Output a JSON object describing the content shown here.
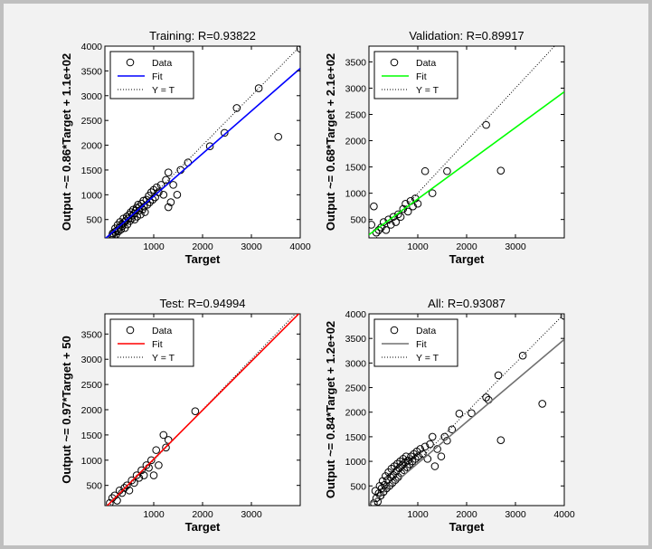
{
  "chart_data": [
    {
      "type": "scatter",
      "title": "Training: R=0.93822",
      "xlabel": "Target",
      "ylabel": "Output ~= 0.86*Target + 1.1e+02",
      "xlim": [
        0,
        4000
      ],
      "ylim": [
        130,
        4000
      ],
      "xticks": [
        1000,
        2000,
        3000,
        4000
      ],
      "yticks": [
        500,
        1000,
        1500,
        2000,
        2500,
        3000,
        3500,
        4000
      ],
      "grid": false,
      "legend_placement": "top-left",
      "fit": {
        "slope": 0.86,
        "intercept": 110,
        "color": "#0000ff"
      },
      "series": [
        {
          "name": "Data",
          "points": [
            [
              150,
              180
            ],
            [
              160,
              220
            ],
            [
              180,
              160
            ],
            [
              200,
              250
            ],
            [
              210,
              320
            ],
            [
              230,
              200
            ],
            [
              250,
              280
            ],
            [
              260,
              390
            ],
            [
              280,
              260
            ],
            [
              300,
              340
            ],
            [
              310,
              450
            ],
            [
              330,
              300
            ],
            [
              350,
              410
            ],
            [
              360,
              370
            ],
            [
              380,
              520
            ],
            [
              400,
              450
            ],
            [
              410,
              330
            ],
            [
              430,
              480
            ],
            [
              450,
              560
            ],
            [
              460,
              400
            ],
            [
              480,
              520
            ],
            [
              500,
              600
            ],
            [
              510,
              470
            ],
            [
              530,
              650
            ],
            [
              550,
              520
            ],
            [
              560,
              580
            ],
            [
              580,
              700
            ],
            [
              600,
              620
            ],
            [
              610,
              500
            ],
            [
              630,
              680
            ],
            [
              650,
              740
            ],
            [
              660,
              560
            ],
            [
              680,
              800
            ],
            [
              700,
              680
            ],
            [
              710,
              760
            ],
            [
              730,
              600
            ],
            [
              750,
              820
            ],
            [
              770,
              700
            ],
            [
              790,
              880
            ],
            [
              800,
              760
            ],
            [
              820,
              650
            ],
            [
              850,
              900
            ],
            [
              870,
              800
            ],
            [
              900,
              980
            ],
            [
              920,
              850
            ],
            [
              950,
              1050
            ],
            [
              980,
              900
            ],
            [
              1000,
              1100
            ],
            [
              1030,
              950
            ],
            [
              1060,
              1150
            ],
            [
              1100,
              1050
            ],
            [
              1150,
              1200
            ],
            [
              1200,
              1000
            ],
            [
              1250,
              1300
            ],
            [
              1300,
              1450
            ],
            [
              1350,
              850
            ],
            [
              1400,
              1200
            ],
            [
              1480,
              1000
            ],
            [
              1550,
              1500
            ],
            [
              1700,
              1650
            ],
            [
              1300,
              750
            ],
            [
              2150,
              1980
            ],
            [
              2450,
              2250
            ],
            [
              2700,
              2750
            ],
            [
              3150,
              3150
            ],
            [
              3550,
              2170
            ],
            [
              4000,
              3950
            ]
          ]
        },
        {
          "name": "Fit"
        },
        {
          "name": "Y = T"
        }
      ]
    },
    {
      "type": "scatter",
      "title": "Validation: R=0.89917",
      "xlabel": "Target",
      "ylabel": "Output ~= 0.68*Target + 2.1e+02",
      "xlim": [
        0,
        4000
      ],
      "ylim": [
        150,
        3800
      ],
      "xticks": [
        1000,
        2000,
        3000
      ],
      "yticks": [
        500,
        1000,
        1500,
        2000,
        2500,
        3000,
        3500
      ],
      "grid": false,
      "legend_placement": "top-left",
      "fit": {
        "slope": 0.68,
        "intercept": 210,
        "color": "#00ff00"
      },
      "series": [
        {
          "name": "Data",
          "points": [
            [
              50,
              400
            ],
            [
              100,
              750
            ],
            [
              150,
              250
            ],
            [
              200,
              300
            ],
            [
              250,
              350
            ],
            [
              300,
              450
            ],
            [
              350,
              300
            ],
            [
              400,
              500
            ],
            [
              450,
              400
            ],
            [
              500,
              550
            ],
            [
              550,
              450
            ],
            [
              600,
              600
            ],
            [
              650,
              550
            ],
            [
              700,
              700
            ],
            [
              750,
              800
            ],
            [
              800,
              650
            ],
            [
              850,
              850
            ],
            [
              900,
              750
            ],
            [
              950,
              900
            ],
            [
              1000,
              800
            ],
            [
              1150,
              1420
            ],
            [
              1300,
              1000
            ],
            [
              1600,
              1420
            ],
            [
              2400,
              2300
            ],
            [
              2700,
              1430
            ]
          ]
        },
        {
          "name": "Fit"
        },
        {
          "name": "Y = T"
        }
      ]
    },
    {
      "type": "scatter",
      "title": "Test: R=0.94994",
      "xlabel": "Target",
      "ylabel": "Output ~= 0.97*Target + 50",
      "xlim": [
        0,
        4000
      ],
      "ylim": [
        100,
        3900
      ],
      "xticks": [
        1000,
        2000,
        3000
      ],
      "yticks": [
        500,
        1000,
        1500,
        2000,
        2500,
        3000,
        3500
      ],
      "grid": false,
      "legend_placement": "top-left",
      "fit": {
        "slope": 0.97,
        "intercept": 50,
        "color": "#ff0000"
      },
      "series": [
        {
          "name": "Data",
          "points": [
            [
              100,
              150
            ],
            [
              150,
              250
            ],
            [
              200,
              300
            ],
            [
              250,
              200
            ],
            [
              300,
              400
            ],
            [
              350,
              350
            ],
            [
              400,
              450
            ],
            [
              450,
              500
            ],
            [
              500,
              400
            ],
            [
              550,
              600
            ],
            [
              600,
              550
            ],
            [
              650,
              700
            ],
            [
              700,
              650
            ],
            [
              750,
              800
            ],
            [
              800,
              700
            ],
            [
              850,
              900
            ],
            [
              900,
              850
            ],
            [
              950,
              1000
            ],
            [
              1000,
              700
            ],
            [
              1050,
              1200
            ],
            [
              1100,
              900
            ],
            [
              1200,
              1500
            ],
            [
              1300,
              1400
            ],
            [
              1250,
              1250
            ],
            [
              1850,
              1970
            ]
          ]
        },
        {
          "name": "Fit"
        },
        {
          "name": "Y = T"
        }
      ]
    },
    {
      "type": "scatter",
      "title": "All: R=0.93087",
      "xlabel": "Target",
      "ylabel": "Output ~= 0.84*Target + 1.2e+02",
      "xlim": [
        0,
        4000
      ],
      "ylim": [
        100,
        4000
      ],
      "xticks": [
        1000,
        2000,
        3000,
        4000
      ],
      "yticks": [
        500,
        1000,
        1500,
        2000,
        2500,
        3000,
        3500,
        4000
      ],
      "grid": false,
      "legend_placement": "top-left",
      "fit": {
        "slope": 0.84,
        "intercept": 120,
        "color": "#707070"
      },
      "series": [
        {
          "name": "Data",
          "points": [
            [
              100,
              150
            ],
            [
              130,
              400
            ],
            [
              150,
              250
            ],
            [
              180,
              180
            ],
            [
              200,
              350
            ],
            [
              220,
              500
            ],
            [
              240,
              300
            ],
            [
              260,
              450
            ],
            [
              280,
              600
            ],
            [
              300,
              380
            ],
            [
              320,
              520
            ],
            [
              340,
              700
            ],
            [
              360,
              450
            ],
            [
              380,
              620
            ],
            [
              400,
              780
            ],
            [
              420,
              500
            ],
            [
              440,
              680
            ],
            [
              460,
              850
            ],
            [
              480,
              560
            ],
            [
              500,
              720
            ],
            [
              520,
              900
            ],
            [
              540,
              620
            ],
            [
              560,
              800
            ],
            [
              580,
              950
            ],
            [
              600,
              680
            ],
            [
              620,
              860
            ],
            [
              640,
              1000
            ],
            [
              660,
              760
            ],
            [
              680,
              920
            ],
            [
              700,
              1050
            ],
            [
              720,
              820
            ],
            [
              740,
              980
            ],
            [
              760,
              1100
            ],
            [
              780,
              880
            ],
            [
              800,
              1020
            ],
            [
              830,
              940
            ],
            [
              860,
              1100
            ],
            [
              890,
              1000
            ],
            [
              920,
              1150
            ],
            [
              950,
              1050
            ],
            [
              980,
              1200
            ],
            [
              1010,
              1100
            ],
            [
              1050,
              1250
            ],
            [
              1100,
              1150
            ],
            [
              1150,
              1300
            ],
            [
              1200,
              1050
            ],
            [
              1250,
              1350
            ],
            [
              1300,
              1500
            ],
            [
              1350,
              900
            ],
            [
              1400,
              1250
            ],
            [
              1480,
              1100
            ],
            [
              1550,
              1500
            ],
            [
              1600,
              1420
            ],
            [
              1700,
              1650
            ],
            [
              1850,
              1970
            ],
            [
              2100,
              1980
            ],
            [
              2400,
              2300
            ],
            [
              2450,
              2250
            ],
            [
              2650,
              2750
            ],
            [
              2700,
              1430
            ],
            [
              3150,
              3150
            ],
            [
              3550,
              2170
            ],
            [
              4000,
              3960
            ]
          ]
        },
        {
          "name": "Fit"
        },
        {
          "name": "Y = T"
        }
      ]
    }
  ]
}
